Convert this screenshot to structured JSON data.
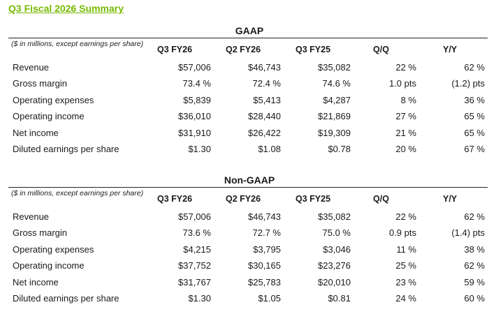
{
  "title": "Q3 Fiscal 2026 Summary",
  "columns": [
    "Q3 FY26",
    "Q2 FY26",
    "Q3 FY25",
    "Q/Q",
    "Y/Y"
  ],
  "note": "($ in millions, except earnings per share)",
  "gaap": {
    "heading": "GAAP",
    "rows": [
      {
        "label": "Revenue",
        "values": [
          "$57,006",
          "$46,743",
          "$35,082",
          "22 %",
          "62 %"
        ]
      },
      {
        "label": "Gross margin",
        "values": [
          "73.4 %",
          "72.4 %",
          "74.6 %",
          "1.0 pts",
          "(1.2) pts"
        ]
      },
      {
        "label": "Operating expenses",
        "values": [
          "$5,839",
          "$5,413",
          "$4,287",
          "8 %",
          "36 %"
        ]
      },
      {
        "label": "Operating income",
        "values": [
          "$36,010",
          "$28,440",
          "$21,869",
          "27 %",
          "65 %"
        ]
      },
      {
        "label": "Net income",
        "values": [
          "$31,910",
          "$26,422",
          "$19,309",
          "21 %",
          "65 %"
        ]
      },
      {
        "label": "Diluted earnings per share",
        "values": [
          "$1.30",
          "$1.08",
          "$0.78",
          "20 %",
          "67 %"
        ]
      }
    ]
  },
  "nongaap": {
    "heading": "Non-GAAP",
    "rows": [
      {
        "label": "Revenue",
        "values": [
          "$57,006",
          "$46,743",
          "$35,082",
          "22 %",
          "62 %"
        ]
      },
      {
        "label": "Gross margin",
        "values": [
          "73.6 %",
          "72.7 %",
          "75.0 %",
          "0.9 pts",
          "(1.4) pts"
        ]
      },
      {
        "label": "Operating expenses",
        "values": [
          "$4,215",
          "$3,795",
          "$3,046",
          "11 %",
          "38 %"
        ]
      },
      {
        "label": "Operating income",
        "values": [
          "$37,752",
          "$30,165",
          "$23,276",
          "25 %",
          "62 %"
        ]
      },
      {
        "label": "Net income",
        "values": [
          "$31,767",
          "$25,783",
          "$20,010",
          "23 %",
          "59 %"
        ]
      },
      {
        "label": "Diluted earnings per share",
        "values": [
          "$1.30",
          "$1.05",
          "$0.81",
          "24 %",
          "60 %"
        ]
      }
    ]
  }
}
